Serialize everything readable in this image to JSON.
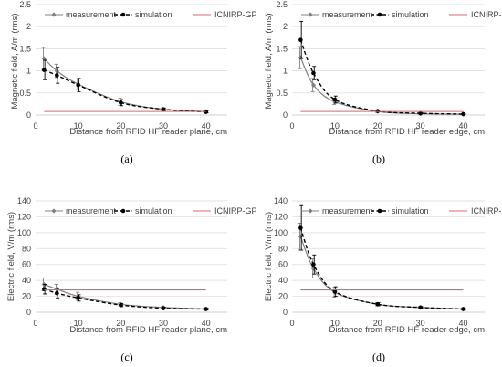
{
  "colors": {
    "measurement": "#808080",
    "simulation": "#000000",
    "limit": "#e06666",
    "grid": "#d9d9d9",
    "axis": "#bfbfbf",
    "text": "#404040"
  },
  "chart_data": [
    {
      "type": "line",
      "panel_label": "(a)",
      "xlabel": "Distance from RFID HF reader plane, cm",
      "ylabel": "Magnetic field, A/m (rms)",
      "xlim": [
        0,
        45
      ],
      "xticks": [
        0,
        10,
        20,
        30,
        40
      ],
      "ylim": [
        0,
        2.5
      ],
      "yticks": [
        0,
        0.5,
        1,
        1.5,
        2,
        2.5
      ],
      "ytick_labels": [
        "0",
        "0.5",
        "1",
        "1.5",
        "2",
        "2.5"
      ],
      "legend_position": "top",
      "series": [
        {
          "name": "measurement",
          "style": "solid",
          "marker": "diamond",
          "x": [
            2,
            5,
            10,
            20,
            30,
            40
          ],
          "y": [
            1.28,
            1.0,
            0.7,
            0.3,
            0.13,
            0.08
          ],
          "err": [
            0.25,
            0.15,
            0.12,
            0.08,
            0.03,
            0.02
          ]
        },
        {
          "name": "simulation",
          "style": "dashed",
          "marker": "circle",
          "x": [
            2,
            5,
            10,
            20,
            30,
            40
          ],
          "y": [
            1.02,
            0.9,
            0.68,
            0.28,
            0.13,
            0.07
          ],
          "err": [
            0.22,
            0.18,
            0.15,
            0.07,
            0.03,
            0.02
          ]
        },
        {
          "name": "ICNIRP-GP",
          "style": "solid",
          "marker": "none",
          "x": [
            2,
            40
          ],
          "y": [
            0.08,
            0.08
          ]
        }
      ]
    },
    {
      "type": "line",
      "panel_label": "(b)",
      "xlabel": "Distance from RFID HF reader edge, cm",
      "ylabel": "Magnetic field, A/m (rms)",
      "xlim": [
        0,
        45
      ],
      "xticks": [
        0,
        10,
        20,
        30,
        40
      ],
      "ylim": [
        0,
        2.5
      ],
      "yticks": [
        0,
        0.5,
        1,
        1.5,
        2,
        2.5
      ],
      "ytick_labels": [
        "0",
        "0.5",
        "1",
        "1.5",
        "2",
        "2.5"
      ],
      "legend_position": "top",
      "series": [
        {
          "name": "measurement",
          "style": "solid",
          "marker": "diamond",
          "x": [
            2,
            5,
            10,
            20,
            30,
            40
          ],
          "y": [
            1.3,
            0.68,
            0.3,
            0.08,
            0.03,
            0.02
          ],
          "err": [
            0.25,
            0.15,
            0.06,
            0.02,
            0.01,
            0.01
          ]
        },
        {
          "name": "simulation",
          "style": "dashed",
          "marker": "circle",
          "x": [
            2,
            5,
            10,
            20,
            30,
            40
          ],
          "y": [
            1.7,
            0.95,
            0.35,
            0.09,
            0.04,
            0.02
          ],
          "err": [
            0.42,
            0.15,
            0.08,
            0.02,
            0.01,
            0.01
          ]
        },
        {
          "name": "ICNIRP-GP",
          "style": "solid",
          "marker": "none",
          "x": [
            2,
            40
          ],
          "y": [
            0.08,
            0.08
          ]
        }
      ]
    },
    {
      "type": "line",
      "panel_label": "(c)",
      "xlabel": "Distance from RFID HF reader plane, cm",
      "ylabel": "Electric field, V/m (rms)",
      "xlim": [
        0,
        45
      ],
      "xticks": [
        0,
        10,
        20,
        30,
        40
      ],
      "ylim": [
        0,
        140
      ],
      "yticks": [
        0,
        20,
        40,
        60,
        80,
        100,
        120,
        140
      ],
      "ytick_labels": [
        "0",
        "20",
        "40",
        "60",
        "80",
        "100",
        "120",
        "140"
      ],
      "legend_position": "top",
      "series": [
        {
          "name": "measurement",
          "style": "solid",
          "marker": "diamond",
          "x": [
            2,
            5,
            10,
            20,
            30,
            40
          ],
          "y": [
            35,
            29,
            20,
            10,
            6,
            4
          ],
          "err": [
            8,
            6,
            5,
            2,
            1,
            1
          ]
        },
        {
          "name": "simulation",
          "style": "dashed",
          "marker": "circle",
          "x": [
            2,
            5,
            10,
            20,
            30,
            40
          ],
          "y": [
            29,
            24,
            18,
            9,
            5,
            4
          ],
          "err": [
            6,
            6,
            4,
            2,
            1,
            1
          ]
        },
        {
          "name": "ICNIRP-GP",
          "style": "solid",
          "marker": "none",
          "x": [
            2,
            40
          ],
          "y": [
            28,
            28
          ]
        }
      ]
    },
    {
      "type": "line",
      "panel_label": "(d)",
      "xlabel": "Distance from RFID HF reader edge, cm",
      "ylabel": "Electric field, V/m (rms)",
      "xlim": [
        0,
        45
      ],
      "xticks": [
        0,
        10,
        20,
        30,
        40
      ],
      "ylim": [
        0,
        140
      ],
      "yticks": [
        0,
        20,
        40,
        60,
        80,
        100,
        120,
        140
      ],
      "ytick_labels": [
        "0",
        "20",
        "40",
        "60",
        "80",
        "100",
        "120",
        "140"
      ],
      "legend_position": "top",
      "series": [
        {
          "name": "measurement",
          "style": "solid",
          "marker": "diamond",
          "x": [
            2,
            5,
            10,
            20,
            30,
            40
          ],
          "y": [
            95,
            55,
            25,
            10,
            6,
            4
          ],
          "err": [
            17,
            12,
            6,
            2,
            1,
            1
          ]
        },
        {
          "name": "simulation",
          "style": "dashed",
          "marker": "circle",
          "x": [
            2,
            5,
            10,
            20,
            30,
            40
          ],
          "y": [
            106,
            60,
            26,
            10,
            6,
            4
          ],
          "err": [
            28,
            12,
            6,
            2,
            1,
            1
          ]
        },
        {
          "name": "ICNIRP-GP",
          "style": "solid",
          "marker": "none",
          "x": [
            2,
            40
          ],
          "y": [
            28,
            28
          ]
        }
      ]
    }
  ]
}
